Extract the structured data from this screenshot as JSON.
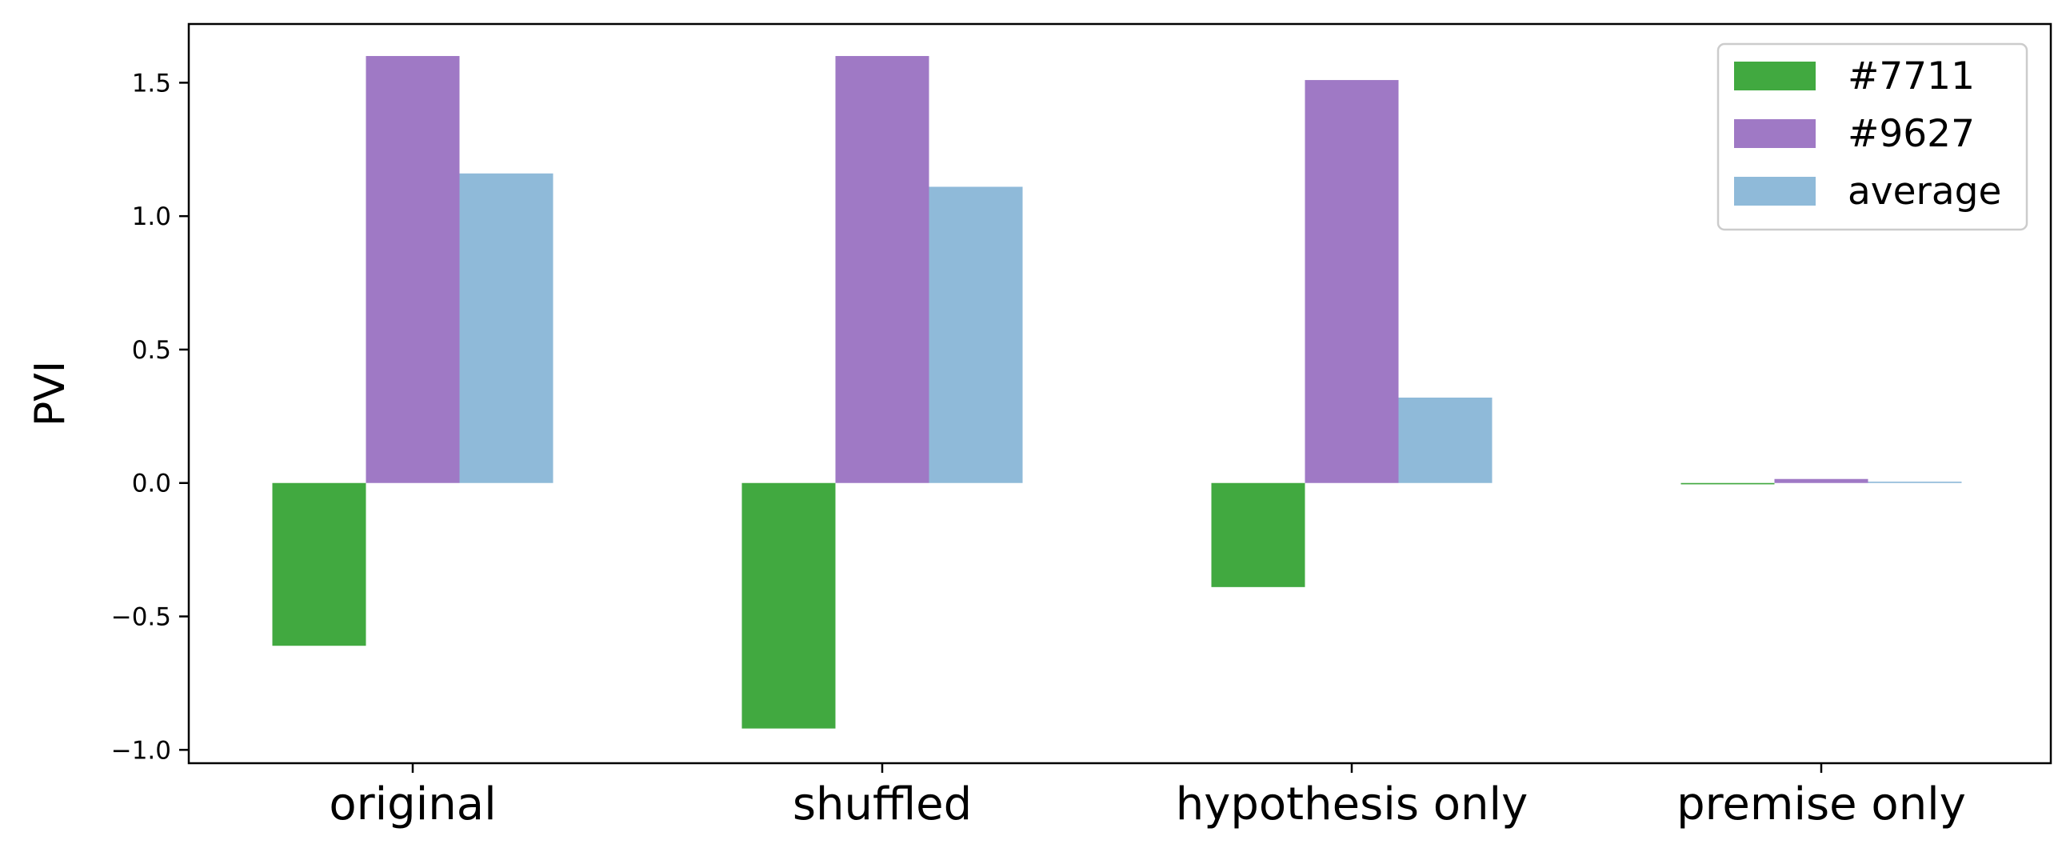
{
  "chart_data": {
    "type": "bar",
    "title": "",
    "xlabel": "",
    "ylabel": "PVI",
    "categories": [
      "original",
      "shuffled",
      "hypothesis only",
      "premise only"
    ],
    "series": [
      {
        "name": "#7711",
        "color": "#41a940",
        "values": [
          -0.61,
          -0.92,
          -0.39,
          -0.005
        ]
      },
      {
        "name": "#9627",
        "color": "#9f79c5",
        "values": [
          1.6,
          1.6,
          1.51,
          0.015
        ]
      },
      {
        "name": "average",
        "color": "#8fbad9",
        "values": [
          1.16,
          1.11,
          0.32,
          0.005
        ]
      }
    ],
    "ylim": [
      -1.05,
      1.72
    ],
    "yticks": [
      1.5,
      1.0,
      0.5,
      0.0,
      -0.5,
      -1.0
    ],
    "ytick_labels": [
      "1.5",
      "1.0",
      "0.5",
      "0.0",
      "−0.5",
      "−1.0"
    ],
    "grid": false,
    "legend_position": "top-right"
  }
}
